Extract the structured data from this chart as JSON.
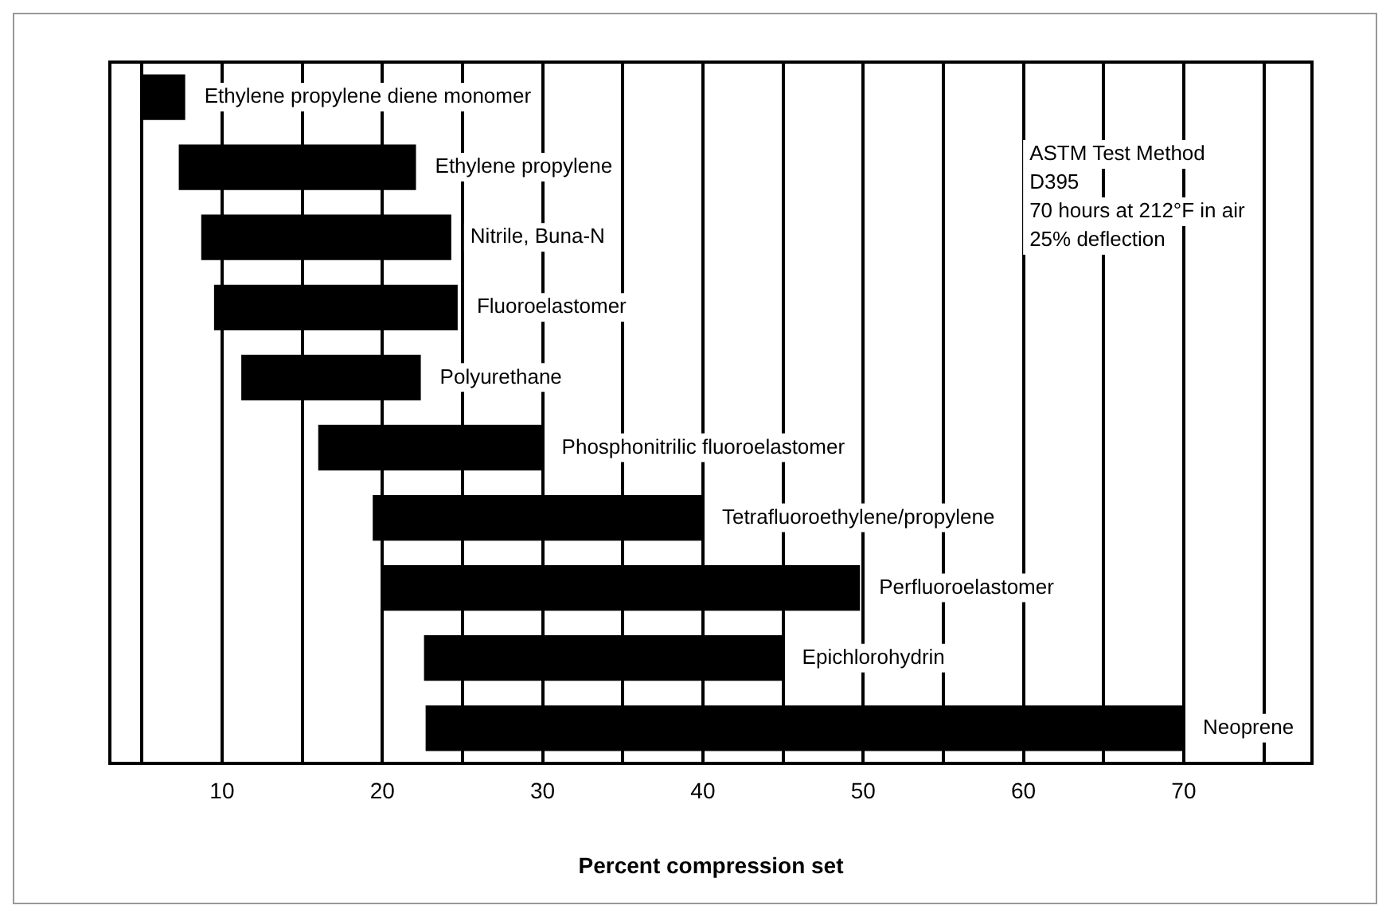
{
  "chart_data": {
    "type": "bar",
    "orientation": "horizontal",
    "xlabel": "Percent compression set",
    "categories": [
      "Ethylene propylene diene monomer",
      "Ethylene propylene",
      "Nitrile, Buna-N",
      "Fluoroelastomer",
      "Polyurethane",
      "Phosphonitrilic fluoroelastomer",
      "Tetrafluoroethylene/propylene",
      "Perfluoroelastomer",
      "Epichlorohydrin",
      "Neoprene"
    ],
    "base": [
      5,
      7.3,
      8.7,
      9.5,
      11.2,
      16,
      19.4,
      20,
      22.6,
      22.7
    ],
    "values": [
      2.7,
      14.8,
      15.6,
      15.2,
      11.2,
      14,
      20.6,
      29.8,
      22.4,
      47.3
    ],
    "color": "#000000",
    "xlim": [
      3,
      78
    ],
    "xticks": [
      {
        "value": 5,
        "label": null
      },
      10,
      {
        "value": 15,
        "label": null
      },
      20,
      {
        "value": 25,
        "label": null
      },
      30,
      {
        "value": 35,
        "label": null
      },
      40,
      {
        "value": 45,
        "label": null
      },
      50,
      {
        "value": 55,
        "label": null
      },
      60,
      {
        "value": 65,
        "label": null
      },
      70,
      {
        "value": 75,
        "label": null
      }
    ],
    "grid": "x",
    "legend": false,
    "annotations": [
      "ASTM Test Method",
      "D395",
      "70 hours at 212°F in air",
      "25% deflection"
    ]
  }
}
